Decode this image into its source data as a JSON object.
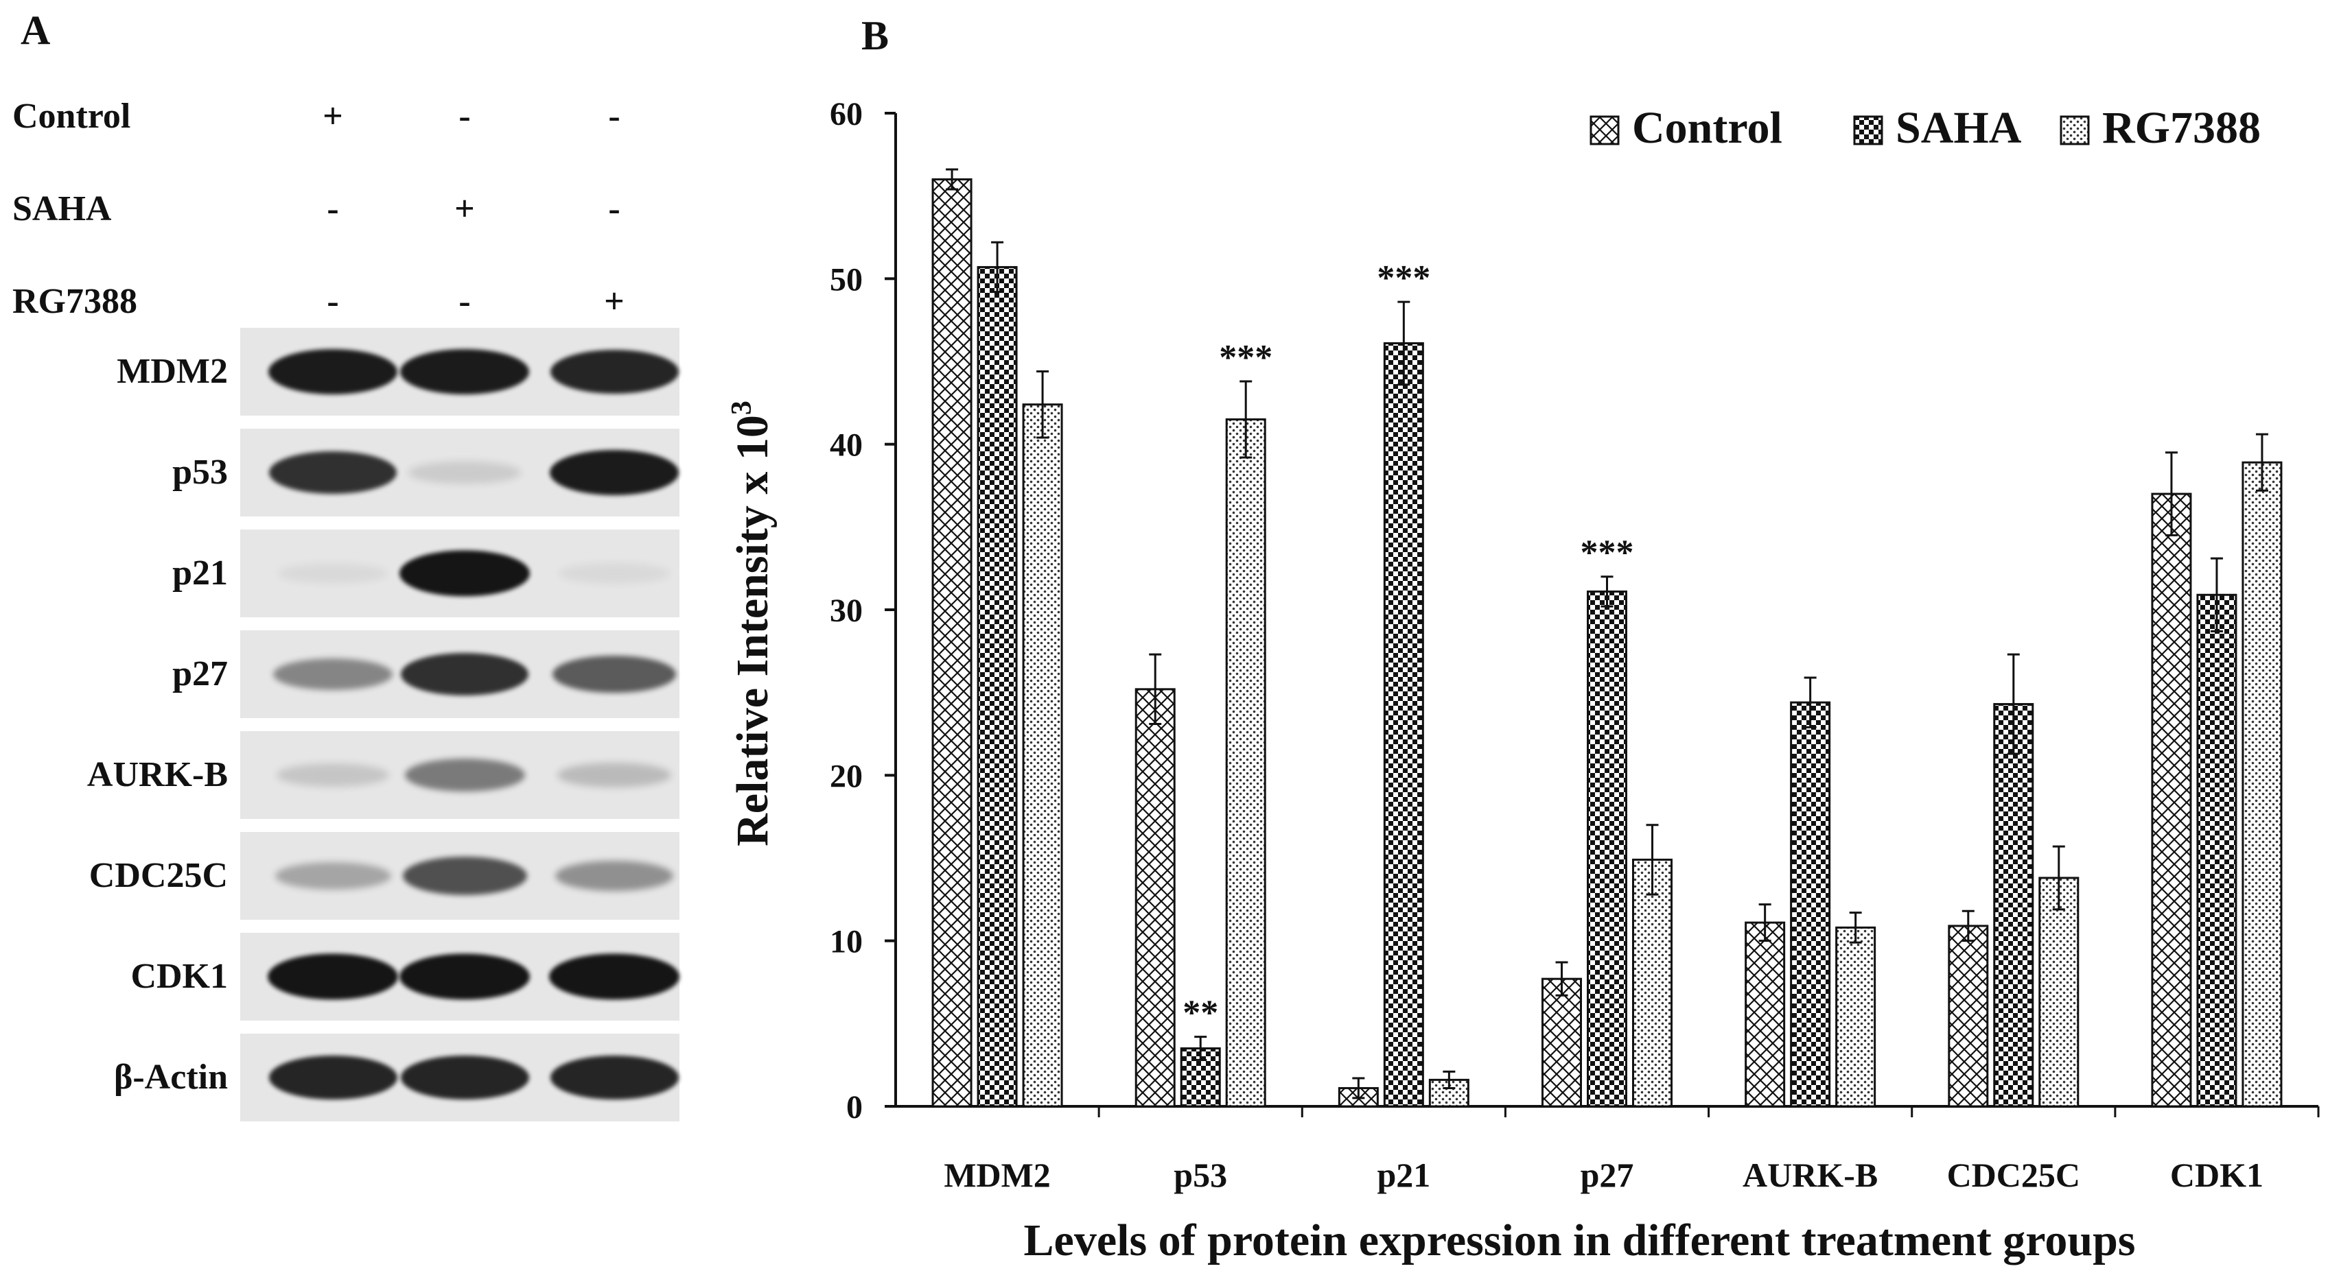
{
  "panel_a": {
    "letter": "A",
    "treatments": [
      {
        "label": "Control",
        "signs": [
          "+",
          "-",
          "-"
        ]
      },
      {
        "label": "SAHA",
        "signs": [
          "-",
          "+",
          "-"
        ]
      },
      {
        "label": "RG7388",
        "signs": [
          "-",
          "-",
          "+"
        ]
      }
    ],
    "blots": [
      {
        "label": "MDM2",
        "intensities": [
          0.95,
          0.95,
          0.9
        ]
      },
      {
        "label": "p53",
        "intensities": [
          0.85,
          0.12,
          0.95
        ]
      },
      {
        "label": "p21",
        "intensities": [
          0.02,
          0.98,
          0.05
        ]
      },
      {
        "label": "p27",
        "intensities": [
          0.45,
          0.85,
          0.65
        ]
      },
      {
        "label": "AURK-B",
        "intensities": [
          0.15,
          0.5,
          0.2
        ]
      },
      {
        "label": "CDC25C",
        "intensities": [
          0.3,
          0.7,
          0.4
        ]
      },
      {
        "label": "CDK1",
        "intensities": [
          0.98,
          0.98,
          0.98
        ]
      },
      {
        "label": "β-Actin",
        "intensities": [
          0.9,
          0.9,
          0.9
        ]
      }
    ]
  },
  "panel_b": {
    "letter": "B"
  },
  "colors": {
    "bar_fill": "#ffffff",
    "bar_stroke": "#111111",
    "ink": "#111111",
    "blot_bg": "#e6e6e6"
  },
  "chart_data": {
    "type": "bar",
    "title": "",
    "xlabel": "Levels of protein expression in different treatment groups",
    "ylabel": "Relative Intensity x 10",
    "ylabel_superscript": "3",
    "ylim": [
      0,
      60
    ],
    "yticks": [
      0,
      10,
      20,
      30,
      40,
      50,
      60
    ],
    "grid": false,
    "legend_position": "top-right",
    "categories": [
      "MDM2",
      "p53",
      "p21",
      "p27",
      "AURK-B",
      "CDC25C",
      "CDK1"
    ],
    "series": [
      {
        "name": "Control",
        "pattern": "crosshatch",
        "values": [
          56,
          25.2,
          1.1,
          7.7,
          11.1,
          10.9,
          37.0
        ],
        "errors": [
          0.6,
          2.1,
          0.6,
          1.0,
          1.1,
          0.9,
          2.5
        ],
        "annotations": [
          "",
          "",
          "",
          "",
          "",
          "",
          ""
        ]
      },
      {
        "name": "SAHA",
        "pattern": "checker",
        "values": [
          50.7,
          3.5,
          46.1,
          31.1,
          24.4,
          24.3,
          30.9
        ],
        "errors": [
          1.5,
          0.7,
          2.5,
          0.9,
          1.5,
          3.0,
          2.2
        ],
        "annotations": [
          "",
          "**",
          "***",
          "***",
          "",
          "",
          ""
        ]
      },
      {
        "name": "RG7388",
        "pattern": "dots",
        "values": [
          42.4,
          41.5,
          1.6,
          14.9,
          10.8,
          13.8,
          38.9
        ],
        "errors": [
          2.0,
          2.3,
          0.5,
          2.1,
          0.9,
          1.9,
          1.7
        ],
        "annotations": [
          "",
          "***",
          "",
          "",
          "",
          "",
          ""
        ]
      }
    ]
  }
}
